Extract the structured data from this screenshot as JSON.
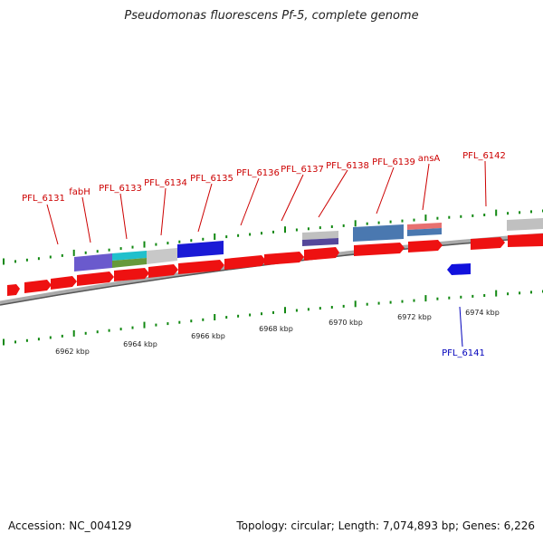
{
  "title": "Pseudomonas fluorescens Pf-5, complete genome",
  "footer": {
    "accession": "Accession: NC_004129",
    "summary": "Topology: circular; Length: 7,074,893 bp; Genes: 6,226"
  },
  "colors": {
    "cds": "#ee1111",
    "reverse_cds": "#1111dd",
    "backbone": "#7a7a7a",
    "ticks": "#118811",
    "forward_label": "#cc0000",
    "reverse_label": "#0000bb"
  },
  "scale_labels": [
    "6962 kbp",
    "6964 kbp",
    "6966 kbp",
    "6968 kbp",
    "6970 kbp",
    "6972 kbp",
    "6974 kbp"
  ],
  "forward_gene_labels": [
    "PFL_6131",
    "fabH",
    "PFL_6133",
    "PFL_6134",
    "PFL_6135",
    "PFL_6136",
    "PFL_6137",
    "PFL_6138",
    "PFL_6139",
    "ansA",
    "PFL_6142"
  ],
  "reverse_gene_labels": [
    "PFL_6141"
  ]
}
